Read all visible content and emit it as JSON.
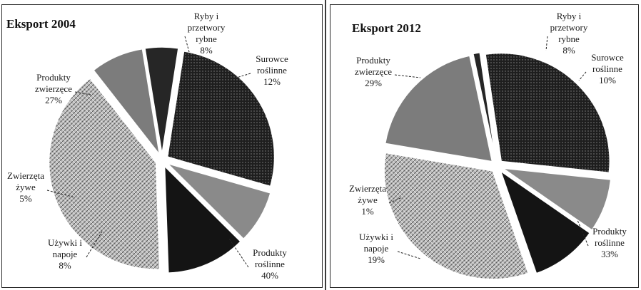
{
  "colors": {
    "fish": "#8a8a8a",
    "plant_raw": "#141414",
    "plant_products": "#bdbdbd",
    "stimulants": "#7c7c7c",
    "live_animals": "#262626",
    "animal_products": "#1e1e1e"
  },
  "chart_data": [
    {
      "type": "pie",
      "title": "Eksport 2004",
      "exploded": true,
      "slices": [
        {
          "key": "fish",
          "label_lines": [
            "Ryby i",
            "przetwory",
            "rybne"
          ],
          "value": 8,
          "value_label": "8%"
        },
        {
          "key": "plant_raw",
          "label_lines": [
            "Surowce",
            "roślinne"
          ],
          "value": 12,
          "value_label": "12%"
        },
        {
          "key": "plant_products",
          "label_lines": [
            "Produkty",
            "roślinne"
          ],
          "value": 40,
          "value_label": "40%"
        },
        {
          "key": "stimulants",
          "label_lines": [
            "Używki i",
            "napoje"
          ],
          "value": 8,
          "value_label": "8%"
        },
        {
          "key": "live_animals",
          "label_lines": [
            "Zwierzęta",
            "żywe"
          ],
          "value": 5,
          "value_label": "5%"
        },
        {
          "key": "animal_products",
          "label_lines": [
            "Produkty",
            "zwierzęce"
          ],
          "value": 27,
          "value_label": "27%"
        }
      ]
    },
    {
      "type": "pie",
      "title": "Eksport 2012",
      "exploded": true,
      "slices": [
        {
          "key": "fish",
          "label_lines": [
            "Ryby i",
            "przetwory",
            "rybne"
          ],
          "value": 8,
          "value_label": "8%"
        },
        {
          "key": "plant_raw",
          "label_lines": [
            "Surowce",
            "roślinne"
          ],
          "value": 10,
          "value_label": "10%"
        },
        {
          "key": "plant_products",
          "label_lines": [
            "Produkty",
            "roślinne"
          ],
          "value": 33,
          "value_label": "33%"
        },
        {
          "key": "stimulants",
          "label_lines": [
            "Używki i",
            "napoje"
          ],
          "value": 19,
          "value_label": "19%"
        },
        {
          "key": "live_animals",
          "label_lines": [
            "Zwierzęta",
            "żywe"
          ],
          "value": 1,
          "value_label": "1%"
        },
        {
          "key": "animal_products",
          "label_lines": [
            "Produkty",
            "zwierzęce"
          ],
          "value": 29,
          "value_label": "29%"
        }
      ]
    }
  ]
}
